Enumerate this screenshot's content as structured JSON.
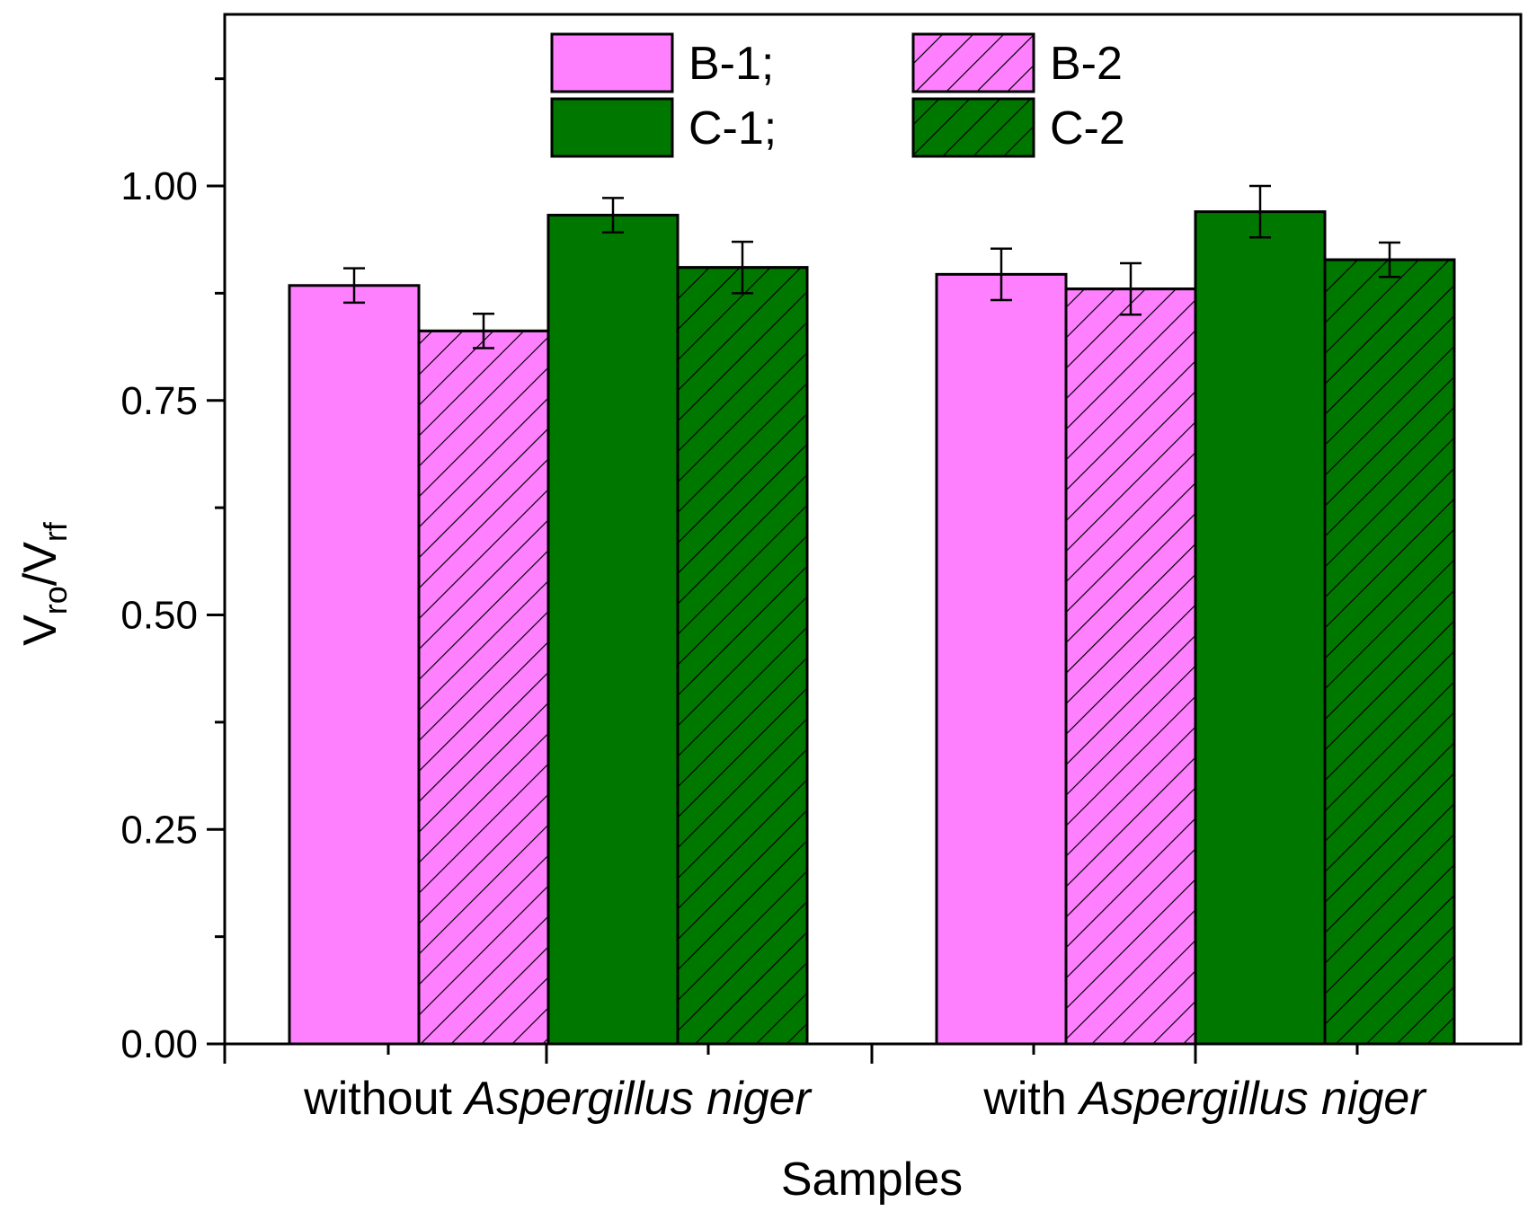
{
  "chart_data": {
    "type": "bar",
    "xlabel": "Samples",
    "ylabel_main": "V",
    "ylabel_sub1": "ro",
    "ylabel_sep": "/V",
    "ylabel_sub2": "rf",
    "ylim": [
      0,
      1.2
    ],
    "yticks": [
      "0.00",
      "0.25",
      "0.50",
      "0.75",
      "1.00"
    ],
    "ytick_values": [
      0,
      0.25,
      0.5,
      0.75,
      1.0
    ],
    "grid": false,
    "legend_position": "top-center",
    "categories": [
      {
        "prefix": "without ",
        "italic": "Aspergillus niger"
      },
      {
        "prefix": "with ",
        "italic": "Aspergillus niger"
      }
    ],
    "series": [
      {
        "name": "B-1;",
        "color": "#ff80ff",
        "hatch": false,
        "values": [
          0.884,
          0.897
        ],
        "errors": [
          0.02,
          0.03
        ]
      },
      {
        "name": "B-2",
        "color": "#ff80ff",
        "hatch": true,
        "values": [
          0.831,
          0.88
        ],
        "errors": [
          0.02,
          0.03
        ]
      },
      {
        "name": "C-1;",
        "color": "#007800",
        "hatch": false,
        "values": [
          0.966,
          0.97
        ],
        "errors": [
          0.02,
          0.03
        ]
      },
      {
        "name": "C-2",
        "color": "#007800",
        "hatch": true,
        "values": [
          0.905,
          0.914
        ],
        "errors": [
          0.03,
          0.02
        ]
      }
    ]
  }
}
